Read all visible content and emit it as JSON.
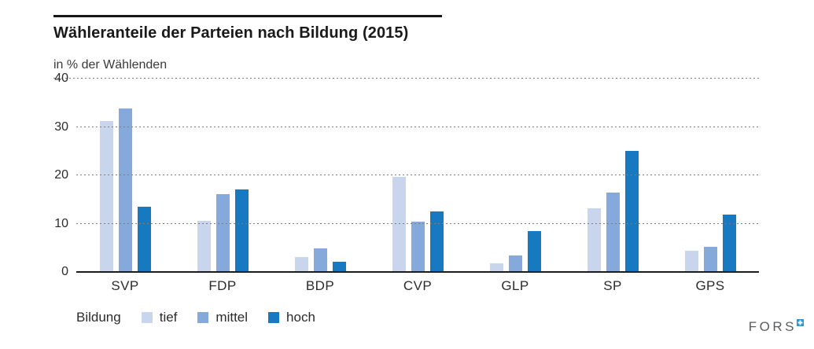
{
  "chart_data": {
    "type": "bar",
    "title": "Wähleranteile der Parteien nach Bildung (2015)",
    "subtitle": "in % der Wählenden",
    "categories": [
      "SVP",
      "FDP",
      "BDP",
      "CVP",
      "GLP",
      "SP",
      "GPS"
    ],
    "series": [
      {
        "name": "tief",
        "color": "#c8d5ed",
        "values": [
          31.2,
          10.6,
          3.1,
          19.6,
          1.8,
          13.2,
          4.4
        ]
      },
      {
        "name": "mittel",
        "color": "#84a9da",
        "values": [
          33.8,
          16.1,
          4.9,
          10.4,
          3.4,
          16.4,
          5.2
        ]
      },
      {
        "name": "hoch",
        "color": "#1779bf",
        "values": [
          13.5,
          17.1,
          2.1,
          12.5,
          8.5,
          25.0,
          11.8
        ]
      }
    ],
    "ylim": [
      0,
      40
    ],
    "yticks": [
      0,
      10,
      20,
      30,
      40
    ],
    "grid": "horizontal dotted",
    "legend_title": "Bildung",
    "legend_position": "bottom-left"
  },
  "footer": {
    "logo_text": "FORS"
  },
  "colors": {
    "axis": "#1c1c1c",
    "gridline": "#7d7d7d",
    "text": "#2b2b2b",
    "logo_gray": "#5b5e60",
    "logo_blue": "#2d96d5"
  }
}
